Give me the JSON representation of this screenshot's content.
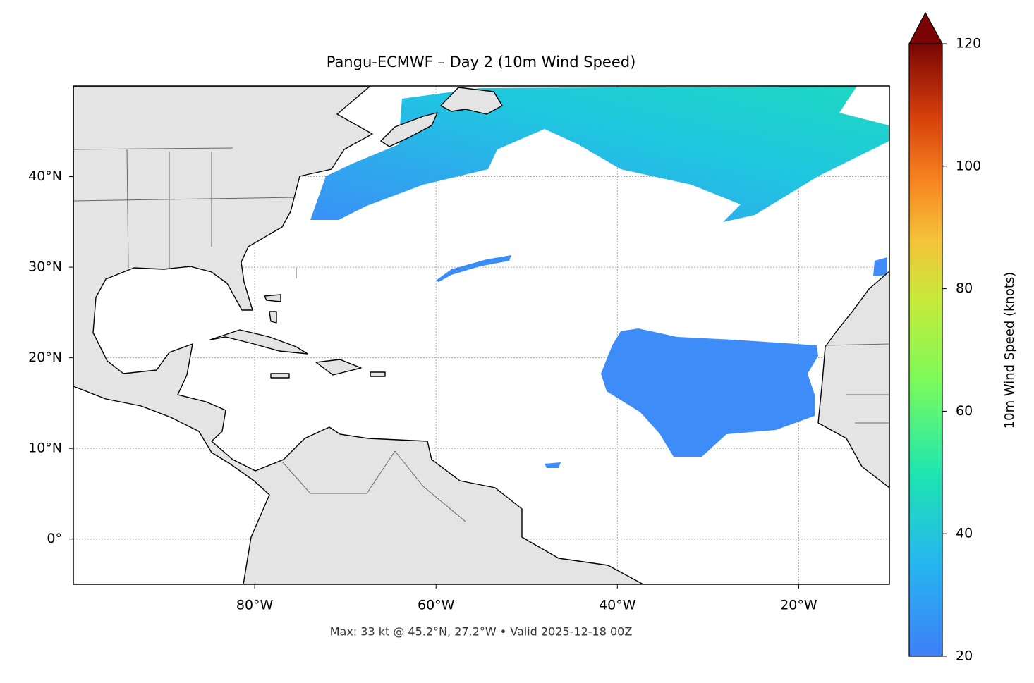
{
  "map": {
    "title": "Pangu-ECMWF – Day 2 (10m Wind Speed)",
    "caption": "Max: 33 kt @ 45.2°N, 27.2°W • Valid 2025-12-18 00Z",
    "xlim": [
      -100,
      -10
    ],
    "ylim": [
      -5,
      50
    ],
    "xticks": [
      {
        "value": -80,
        "label": "80°W"
      },
      {
        "value": -60,
        "label": "60°W"
      },
      {
        "value": -40,
        "label": "40°W"
      },
      {
        "value": -20,
        "label": "20°W"
      }
    ],
    "yticks": [
      {
        "value": 0,
        "label": "0°"
      },
      {
        "value": 10,
        "label": "10°N"
      },
      {
        "value": 20,
        "label": "20°N"
      },
      {
        "value": 30,
        "label": "30°N"
      },
      {
        "value": 40,
        "label": "40°N"
      }
    ],
    "grid": true,
    "colorbar": {
      "label": "10m Wind Speed (knots)",
      "lim": [
        20,
        120
      ],
      "ticks": [
        20,
        40,
        60,
        80,
        100,
        120
      ],
      "extend": "max"
    }
  }
}
